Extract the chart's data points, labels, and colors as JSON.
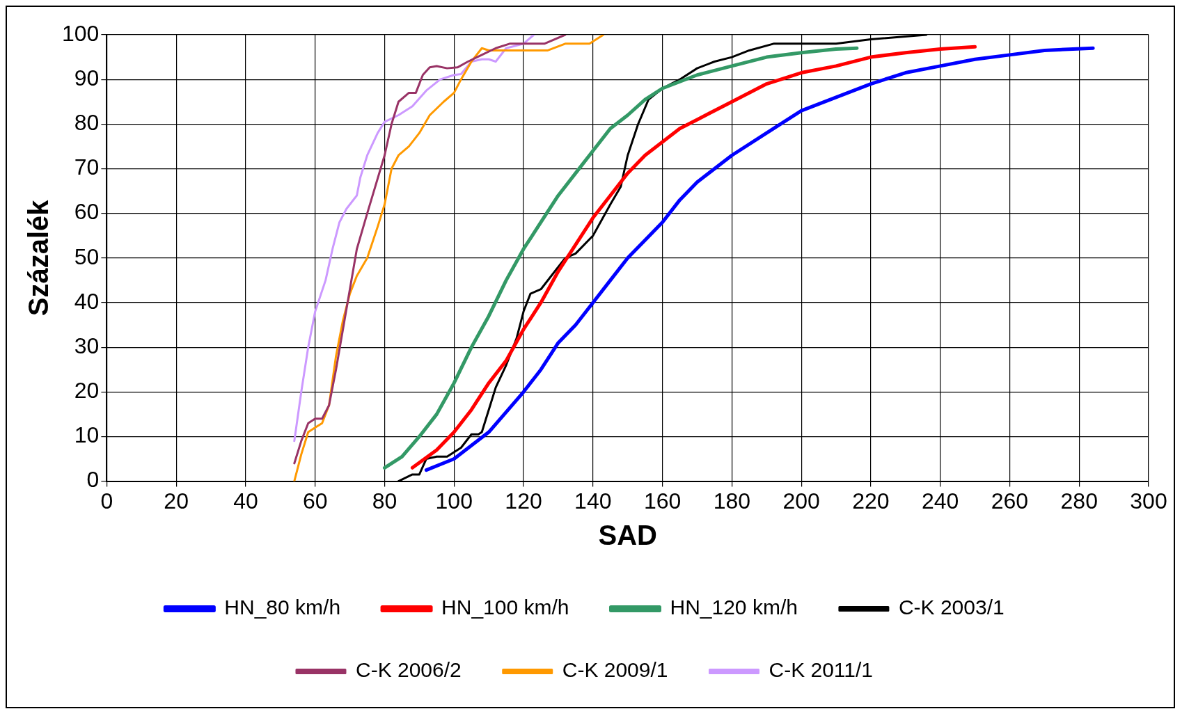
{
  "chart_data": {
    "type": "line",
    "xlabel": "SAD",
    "ylabel": "Százalék",
    "xlim": [
      0,
      300
    ],
    "xticks": [
      0,
      20,
      40,
      60,
      80,
      100,
      120,
      140,
      160,
      180,
      200,
      220,
      240,
      260,
      280,
      300
    ],
    "ylim": [
      0,
      100
    ],
    "yticks": [
      0,
      10,
      20,
      30,
      40,
      50,
      60,
      70,
      80,
      90,
      100
    ],
    "grid": true,
    "legend": "bottom",
    "marker": "none",
    "line_style": "solid",
    "series": [
      {
        "name": "HN_80 km/h",
        "color": "#0000ff",
        "x": [
          92,
          100,
          105,
          110,
          120,
          125,
          130,
          135,
          140,
          145,
          150,
          160,
          165,
          170,
          180,
          190,
          200,
          210,
          220,
          230,
          240,
          250,
          260,
          270,
          284
        ],
        "values": [
          2.5,
          5,
          8,
          11,
          20,
          25,
          31,
          35,
          40,
          45,
          50,
          58,
          63,
          67,
          73,
          78,
          83,
          86,
          89,
          91.5,
          93,
          94.5,
          95.5,
          96.5,
          97
        ]
      },
      {
        "name": "HN_100 km/h",
        "color": "#ff0000",
        "x": [
          88,
          95,
          100,
          105,
          110,
          115,
          120,
          125,
          130,
          135,
          140,
          145,
          150,
          155,
          160,
          165,
          170,
          180,
          190,
          200,
          210,
          220,
          230,
          240,
          250
        ],
        "values": [
          3,
          7,
          11,
          16,
          22,
          27,
          34,
          40,
          47,
          53,
          59,
          64,
          69,
          73,
          76,
          79,
          81,
          85,
          89,
          91.5,
          93,
          95,
          96,
          96.8,
          97.3
        ]
      },
      {
        "name": "HN_120 km/h",
        "color": "#339966",
        "x": [
          80,
          85,
          90,
          95,
          100,
          105,
          110,
          115,
          120,
          125,
          130,
          135,
          140,
          145,
          150,
          155,
          160,
          170,
          180,
          190,
          200,
          210,
          216
        ],
        "values": [
          3,
          5.5,
          10,
          15,
          22,
          30,
          37,
          45,
          52,
          58,
          64,
          69,
          74,
          79,
          82,
          85.5,
          88,
          91,
          93,
          95,
          96,
          96.8,
          97
        ]
      },
      {
        "name": "C-K 2003/1",
        "color": "#000000",
        "x": [
          84,
          88,
          90,
          92,
          95,
          98,
          102,
          105,
          107,
          108,
          110,
          112,
          115,
          118,
          120,
          122,
          125,
          128,
          132,
          135,
          140,
          145,
          148,
          150,
          153,
          156,
          160,
          165,
          170,
          175,
          180,
          185,
          192,
          210,
          220,
          236
        ],
        "values": [
          0,
          1.5,
          1.5,
          5,
          5.5,
          5.5,
          7.5,
          10.5,
          10.5,
          11,
          16,
          21,
          26,
          32,
          38,
          42,
          43,
          46,
          50,
          51,
          55,
          62,
          66,
          73,
          80,
          85.5,
          88,
          90,
          92.5,
          94,
          95,
          96.5,
          98,
          98,
          99,
          100
        ]
      },
      {
        "name": "C-K 2006/2",
        "color": "#993366",
        "x": [
          54,
          56,
          58,
          60,
          62,
          64,
          66,
          68,
          70,
          72,
          75,
          80,
          82,
          84,
          87,
          89,
          91,
          93,
          95,
          98,
          101,
          104,
          108,
          112,
          116,
          120,
          126,
          132
        ],
        "values": [
          4,
          9,
          13,
          14,
          14,
          17,
          25,
          34,
          43,
          52,
          60,
          73,
          80,
          85,
          87,
          87,
          91,
          92.7,
          93,
          92.5,
          92.7,
          94,
          95.5,
          97,
          98,
          98,
          98,
          100
        ]
      },
      {
        "name": "C-K 2009/1",
        "color": "#ff9900",
        "x": [
          54,
          56,
          58,
          60,
          62,
          64,
          66,
          68,
          70,
          72,
          75,
          78,
          80,
          82,
          84,
          87,
          90,
          93,
          97,
          100,
          102,
          105,
          108,
          110,
          115,
          120,
          127,
          132,
          139,
          143
        ],
        "values": [
          0,
          6,
          11,
          12,
          13,
          17,
          28,
          36,
          42,
          46,
          50,
          57,
          62,
          70,
          73,
          75,
          78,
          82,
          85,
          87,
          90,
          94,
          97,
          96.5,
          96.5,
          96.5,
          96.5,
          98,
          98,
          100
        ]
      },
      {
        "name": "C-K 2011/1",
        "color": "#cc99ff",
        "x": [
          54,
          56,
          58,
          60,
          63,
          65,
          67,
          69,
          72,
          73,
          75,
          78,
          80,
          84,
          88,
          92,
          96,
          100,
          102,
          105,
          108,
          110,
          112,
          115,
          120,
          123
        ],
        "values": [
          9,
          20,
          30,
          38,
          45,
          52,
          58,
          61,
          64,
          68,
          73,
          78,
          80.5,
          82,
          84,
          87.5,
          90,
          91,
          91.2,
          94,
          94.5,
          94.5,
          94,
          97,
          98,
          100
        ]
      }
    ]
  }
}
